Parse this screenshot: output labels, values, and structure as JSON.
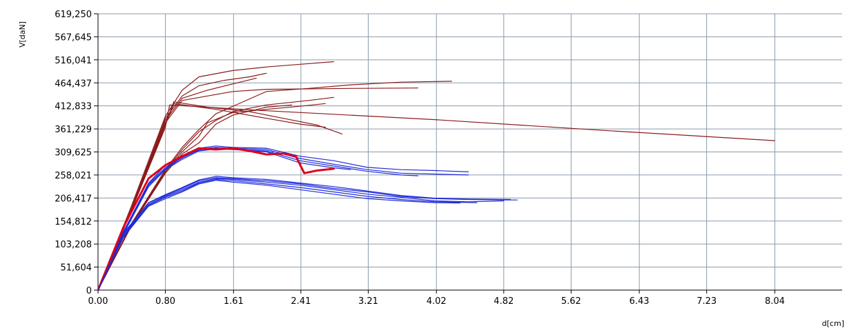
{
  "chart_data": {
    "type": "line",
    "xlabel": "d[cm]",
    "ylabel": "V[daN]",
    "xlim": [
      0,
      8.84
    ],
    "ylim": [
      0,
      619.25
    ],
    "x_ticks": [
      0.0,
      0.8,
      1.61,
      2.41,
      3.21,
      4.02,
      4.82,
      5.62,
      6.43,
      7.23,
      8.04
    ],
    "x_tick_labels": [
      "0.00",
      "0.80",
      "1.61",
      "2.41",
      "3.21",
      "4.02",
      "4.82",
      "5.62",
      "6.43",
      "7.23",
      "8.04"
    ],
    "y_ticks": [
      0,
      51.604,
      103.208,
      154.812,
      206.417,
      258.021,
      309.625,
      361.229,
      412.833,
      464.437,
      516.041,
      567.645,
      619.25
    ],
    "y_tick_labels": [
      "0",
      "51,604",
      "103,208",
      "154,812",
      "206,417",
      "258,021",
      "309,625",
      "361,229",
      "412,833",
      "464,437",
      "516,041",
      "567,645",
      "619,250"
    ],
    "grid": true,
    "colors": {
      "dark_red": "#8b1a1a",
      "blue": "#1f2bd9",
      "red": "#e0001a",
      "grid": "#8a9aab"
    },
    "series": [
      {
        "color": "dark_red",
        "width": 1.2,
        "points": [
          [
            0,
            0
          ],
          [
            0.4,
            190
          ],
          [
            0.8,
            390
          ],
          [
            1.0,
            448
          ],
          [
            1.2,
            478
          ],
          [
            1.6,
            492
          ],
          [
            2.0,
            500
          ],
          [
            2.4,
            506
          ],
          [
            2.8,
            512
          ]
        ]
      },
      {
        "color": "dark_red",
        "width": 1.2,
        "points": [
          [
            0,
            0
          ],
          [
            0.4,
            185
          ],
          [
            0.8,
            385
          ],
          [
            1.0,
            435
          ],
          [
            1.2,
            458
          ],
          [
            1.5,
            470
          ],
          [
            1.8,
            478
          ],
          [
            2.0,
            486
          ]
        ]
      },
      {
        "color": "dark_red",
        "width": 1.2,
        "points": [
          [
            0,
            0
          ],
          [
            0.4,
            183
          ],
          [
            0.8,
            380
          ],
          [
            1.0,
            430
          ],
          [
            1.3,
            448
          ],
          [
            1.6,
            462
          ],
          [
            1.88,
            475
          ]
        ]
      },
      {
        "color": "dark_red",
        "width": 1.2,
        "points": [
          [
            0,
            0
          ],
          [
            0.4,
            182
          ],
          [
            0.8,
            375
          ],
          [
            1.0,
            425
          ],
          [
            1.3,
            435
          ],
          [
            1.6,
            445
          ],
          [
            2.0,
            450
          ],
          [
            3.0,
            452
          ],
          [
            3.8,
            453
          ]
        ]
      },
      {
        "color": "dark_red",
        "width": 1.2,
        "points": [
          [
            0,
            0
          ],
          [
            0.4,
            180
          ],
          [
            0.8,
            372
          ],
          [
            0.9,
            422
          ],
          [
            1.3,
            410
          ],
          [
            1.8,
            400
          ],
          [
            2.2,
            385
          ],
          [
            2.6,
            370
          ],
          [
            2.9,
            350
          ]
        ]
      },
      {
        "color": "dark_red",
        "width": 1.2,
        "points": [
          [
            0,
            0
          ],
          [
            0.4,
            180
          ],
          [
            0.8,
            370
          ],
          [
            0.9,
            418
          ],
          [
            1.4,
            405
          ],
          [
            2.0,
            385
          ],
          [
            2.4,
            372
          ],
          [
            2.7,
            365
          ]
        ]
      },
      {
        "color": "dark_red",
        "width": 1.2,
        "points": [
          [
            0,
            0
          ],
          [
            0.4,
            180
          ],
          [
            0.8,
            365
          ],
          [
            0.85,
            415
          ],
          [
            2.0,
            402
          ],
          [
            4.0,
            382
          ],
          [
            6.0,
            358
          ],
          [
            8.04,
            335
          ]
        ]
      },
      {
        "color": "dark_red",
        "width": 1.2,
        "points": [
          [
            0,
            0
          ],
          [
            0.4,
            150
          ],
          [
            0.8,
            270
          ],
          [
            1.0,
            320
          ],
          [
            1.2,
            360
          ],
          [
            1.4,
            395
          ],
          [
            1.7,
            420
          ],
          [
            2.0,
            445
          ],
          [
            2.5,
            452
          ],
          [
            3.0,
            460
          ],
          [
            3.6,
            466
          ],
          [
            4.2,
            468
          ]
        ]
      },
      {
        "color": "dark_red",
        "width": 1.2,
        "points": [
          [
            0,
            0
          ],
          [
            0.4,
            148
          ],
          [
            0.8,
            268
          ],
          [
            1.0,
            315
          ],
          [
            1.2,
            355
          ],
          [
            1.4,
            380
          ],
          [
            1.6,
            400
          ],
          [
            2.0,
            415
          ],
          [
            2.5,
            425
          ],
          [
            2.8,
            432
          ]
        ]
      },
      {
        "color": "dark_red",
        "width": 1.2,
        "points": [
          [
            0,
            0
          ],
          [
            0.4,
            146
          ],
          [
            0.8,
            265
          ],
          [
            1.0,
            310
          ],
          [
            1.2,
            345
          ],
          [
            1.3,
            375
          ],
          [
            1.6,
            398
          ],
          [
            2.0,
            405
          ],
          [
            2.4,
            412
          ],
          [
            2.7,
            418
          ]
        ]
      },
      {
        "color": "dark_red",
        "width": 1.2,
        "points": [
          [
            0,
            0
          ],
          [
            0.4,
            145
          ],
          [
            0.8,
            262
          ],
          [
            1.0,
            305
          ],
          [
            1.2,
            330
          ],
          [
            1.4,
            372
          ],
          [
            1.6,
            392
          ],
          [
            2.0,
            410
          ],
          [
            2.3,
            415
          ]
        ]
      },
      {
        "color": "blue",
        "width": 1.2,
        "points": [
          [
            0,
            0
          ],
          [
            0.3,
            130
          ],
          [
            0.6,
            240
          ],
          [
            0.8,
            280
          ],
          [
            1.0,
            300
          ],
          [
            1.2,
            318
          ],
          [
            1.4,
            323
          ],
          [
            1.6,
            320
          ],
          [
            2.0,
            318
          ],
          [
            2.4,
            300
          ],
          [
            2.8,
            290
          ],
          [
            3.2,
            275
          ],
          [
            3.6,
            270
          ],
          [
            4.0,
            268
          ],
          [
            4.4,
            265
          ]
        ]
      },
      {
        "color": "blue",
        "width": 1.2,
        "points": [
          [
            0,
            0
          ],
          [
            0.3,
            128
          ],
          [
            0.6,
            238
          ],
          [
            0.8,
            275
          ],
          [
            1.0,
            298
          ],
          [
            1.2,
            316
          ],
          [
            1.4,
            320
          ],
          [
            1.6,
            318
          ],
          [
            2.0,
            315
          ],
          [
            2.4,
            295
          ],
          [
            2.8,
            282
          ],
          [
            3.2,
            270
          ],
          [
            3.6,
            262
          ],
          [
            4.0,
            260
          ],
          [
            4.4,
            258
          ]
        ]
      },
      {
        "color": "blue",
        "width": 1.2,
        "points": [
          [
            0,
            0
          ],
          [
            0.3,
            126
          ],
          [
            0.6,
            235
          ],
          [
            0.8,
            272
          ],
          [
            1.0,
            296
          ],
          [
            1.2,
            314
          ],
          [
            1.4,
            318
          ],
          [
            1.6,
            316
          ],
          [
            2.0,
            312
          ],
          [
            2.4,
            290
          ],
          [
            2.8,
            278
          ],
          [
            3.2,
            266
          ],
          [
            3.6,
            258
          ],
          [
            3.8,
            256
          ]
        ]
      },
      {
        "color": "blue",
        "width": 1.2,
        "points": [
          [
            0,
            0
          ],
          [
            0.3,
            125
          ],
          [
            0.6,
            232
          ],
          [
            0.8,
            270
          ],
          [
            1.0,
            293
          ],
          [
            1.2,
            312
          ],
          [
            1.4,
            316
          ],
          [
            1.6,
            315
          ],
          [
            2.0,
            310
          ],
          [
            2.4,
            285
          ],
          [
            2.8,
            274
          ],
          [
            3.0,
            270
          ]
        ]
      },
      {
        "color": "red",
        "width": 3,
        "points": [
          [
            0,
            0
          ],
          [
            0.3,
            140
          ],
          [
            0.6,
            250
          ],
          [
            0.8,
            280
          ],
          [
            1.0,
            300
          ],
          [
            1.2,
            318
          ],
          [
            1.4,
            315
          ],
          [
            1.6,
            318
          ],
          [
            1.8,
            312
          ],
          [
            2.0,
            304
          ],
          [
            2.2,
            306
          ],
          [
            2.35,
            300
          ],
          [
            2.45,
            262
          ],
          [
            2.6,
            268
          ],
          [
            2.8,
            272
          ]
        ]
      },
      {
        "color": "blue",
        "width": 1.2,
        "points": [
          [
            0,
            0
          ],
          [
            0.3,
            125
          ],
          [
            0.6,
            195
          ],
          [
            0.8,
            212
          ],
          [
            1.0,
            228
          ],
          [
            1.2,
            245
          ],
          [
            1.4,
            252
          ],
          [
            1.6,
            250
          ],
          [
            2.0,
            245
          ],
          [
            2.4,
            238
          ],
          [
            2.8,
            228
          ],
          [
            3.2,
            220
          ],
          [
            3.6,
            210
          ],
          [
            4.0,
            205
          ],
          [
            4.4,
            203
          ],
          [
            4.82,
            202
          ],
          [
            4.98,
            202
          ]
        ]
      },
      {
        "color": "blue",
        "width": 1.2,
        "points": [
          [
            0,
            0
          ],
          [
            0.3,
            122
          ],
          [
            0.6,
            192
          ],
          [
            0.8,
            210
          ],
          [
            1.0,
            225
          ],
          [
            1.2,
            242
          ],
          [
            1.4,
            250
          ],
          [
            1.6,
            248
          ],
          [
            2.0,
            242
          ],
          [
            2.4,
            235
          ],
          [
            2.8,
            225
          ],
          [
            3.2,
            215
          ],
          [
            3.6,
            208
          ],
          [
            4.0,
            200
          ],
          [
            4.4,
            198
          ],
          [
            4.82,
            200
          ]
        ]
      },
      {
        "color": "blue",
        "width": 1.2,
        "points": [
          [
            0,
            0
          ],
          [
            0.3,
            120
          ],
          [
            0.6,
            190
          ],
          [
            0.8,
            208
          ],
          [
            1.0,
            222
          ],
          [
            1.2,
            240
          ],
          [
            1.4,
            248
          ],
          [
            1.6,
            245
          ],
          [
            2.0,
            238
          ],
          [
            2.4,
            230
          ],
          [
            2.8,
            220
          ],
          [
            3.2,
            210
          ],
          [
            3.6,
            203
          ],
          [
            4.0,
            198
          ],
          [
            4.5,
            196
          ]
        ]
      },
      {
        "color": "blue",
        "width": 1.2,
        "points": [
          [
            0,
            0
          ],
          [
            0.3,
            118
          ],
          [
            0.6,
            188
          ],
          [
            0.8,
            205
          ],
          [
            1.0,
            220
          ],
          [
            1.2,
            238
          ],
          [
            1.4,
            246
          ],
          [
            1.6,
            242
          ],
          [
            2.0,
            235
          ],
          [
            2.4,
            225
          ],
          [
            2.8,
            215
          ],
          [
            3.2,
            205
          ],
          [
            3.6,
            200
          ],
          [
            4.0,
            196
          ],
          [
            4.3,
            195
          ]
        ]
      },
      {
        "color": "blue",
        "width": 1.2,
        "points": [
          [
            0,
            0
          ],
          [
            0.3,
            127
          ],
          [
            0.6,
            196
          ],
          [
            0.8,
            214
          ],
          [
            1.0,
            230
          ],
          [
            1.2,
            247
          ],
          [
            1.4,
            255
          ],
          [
            1.6,
            252
          ],
          [
            2.0,
            248
          ],
          [
            2.4,
            240
          ],
          [
            2.8,
            232
          ],
          [
            3.2,
            222
          ],
          [
            3.6,
            212
          ],
          [
            4.0,
            206
          ],
          [
            4.4,
            204
          ],
          [
            4.9,
            203
          ]
        ]
      }
    ]
  }
}
